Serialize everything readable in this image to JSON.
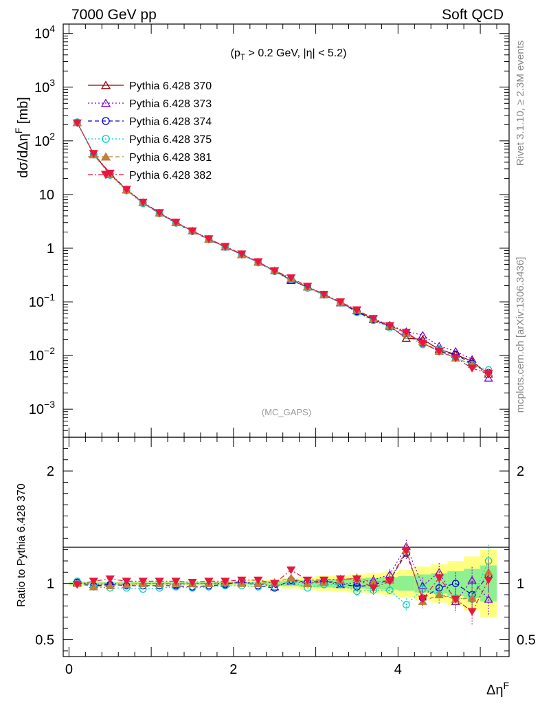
{
  "header": {
    "left": "7000 GeV pp",
    "right": "Soft QCD"
  },
  "side_texts": {
    "top": "Rivet 3.1.10, ≥ 2.3M events",
    "bottom": "mcplots.cern.ch [arXiv:1306.3436]"
  },
  "watermark": "(MC_GAPS)",
  "cut_label": "(p_T > 0.2 GeV, |η| < 5.2)",
  "chart_data": [
    {
      "type": "line",
      "ylabel": "dσ/dΔη^F [mb]",
      "yscale": "log",
      "ylim": [
        0.0003,
        15000
      ],
      "xlim": [
        -0.07,
        5.35
      ],
      "y_ticks": [
        "10^-3",
        "10^-2",
        "10^-1",
        "1",
        "10",
        "10^2",
        "10^3",
        "10^4"
      ],
      "legend_position": "top-left",
      "x": [
        0.1,
        0.3,
        0.5,
        0.7,
        0.9,
        1.1,
        1.3,
        1.5,
        1.7,
        1.9,
        2.1,
        2.3,
        2.5,
        2.7,
        2.9,
        3.1,
        3.3,
        3.5,
        3.7,
        3.9,
        4.1,
        4.3,
        4.5,
        4.7,
        4.9,
        5.1
      ],
      "series": [
        {
          "name": "Pythia 6.428 370",
          "color": "#990000",
          "marker": "triangle-up-open",
          "dash": "solid",
          "values": [
            218,
            57,
            24,
            12.3,
            7.1,
            4.5,
            3.0,
            2.1,
            1.48,
            1.06,
            0.76,
            0.55,
            0.38,
            0.25,
            0.19,
            0.135,
            0.097,
            0.068,
            0.047,
            0.035,
            0.021,
            0.02,
            0.013,
            0.0105,
            0.0078,
            0.0045
          ]
        },
        {
          "name": "Pythia 6.428 373",
          "color": "#7f00cc",
          "marker": "triangle-up-open",
          "dash": "dotted",
          "values": [
            220,
            57,
            24,
            12.2,
            7.1,
            4.5,
            3.0,
            2.1,
            1.48,
            1.06,
            0.76,
            0.55,
            0.38,
            0.26,
            0.19,
            0.135,
            0.096,
            0.069,
            0.048,
            0.037,
            0.028,
            0.024,
            0.015,
            0.012,
            0.0085,
            0.0038
          ]
        },
        {
          "name": "Pythia 6.428 374",
          "color": "#0000cc",
          "marker": "circle-open",
          "dash": "dashed",
          "values": [
            222,
            56,
            24,
            12.1,
            7.0,
            4.4,
            2.95,
            2.05,
            1.45,
            1.05,
            0.77,
            0.54,
            0.37,
            0.26,
            0.19,
            0.137,
            0.096,
            0.066,
            0.046,
            0.036,
            0.026,
            0.017,
            0.012,
            0.0105,
            0.007,
            0.0048
          ]
        },
        {
          "name": "Pythia 6.428 375",
          "color": "#00d1c1",
          "marker": "circle-open",
          "dash": "dotted",
          "values": [
            224,
            55,
            23,
            11.8,
            6.8,
            4.4,
            2.95,
            2.05,
            1.45,
            1.05,
            0.75,
            0.54,
            0.37,
            0.26,
            0.18,
            0.134,
            0.096,
            0.063,
            0.045,
            0.033,
            0.024,
            0.016,
            0.013,
            0.009,
            0.0068,
            0.0054
          ]
        },
        {
          "name": "Pythia 6.428 381",
          "color": "#c17f38",
          "marker": "triangle-up-filled",
          "dash": "dashed",
          "values": [
            219,
            55,
            23.5,
            12.2,
            7.1,
            4.5,
            3.0,
            2.1,
            1.48,
            1.07,
            0.76,
            0.55,
            0.38,
            0.27,
            0.19,
            0.136,
            0.098,
            0.07,
            0.048,
            0.036,
            0.026,
            0.018,
            0.012,
            0.009,
            0.0068,
            0.0048
          ]
        },
        {
          "name": "Pythia 6.428 382",
          "color": "#e8173f",
          "marker": "triangle-down-filled",
          "dash": "dashdot",
          "values": [
            216,
            58,
            25,
            12.5,
            7.2,
            4.6,
            3.05,
            2.1,
            1.5,
            1.08,
            0.78,
            0.56,
            0.38,
            0.28,
            0.195,
            0.138,
            0.1,
            0.071,
            0.049,
            0.036,
            0.027,
            0.017,
            0.012,
            0.009,
            0.0058,
            0.0046
          ]
        }
      ]
    },
    {
      "type": "line",
      "xlabel": "Δη^F",
      "ylabel": "Ratio to Pythia 6.428 370",
      "ylim": [
        0.35,
        2.3
      ],
      "xlim": [
        -0.07,
        5.35
      ],
      "x_ticks": [
        "0",
        "2",
        "4"
      ],
      "y_ticks": [
        "0.5",
        "1",
        "2"
      ],
      "x": [
        0.1,
        0.3,
        0.5,
        0.7,
        0.9,
        1.1,
        1.3,
        1.5,
        1.7,
        1.9,
        2.1,
        2.3,
        2.5,
        2.7,
        2.9,
        3.1,
        3.3,
        3.5,
        3.7,
        3.9,
        4.1,
        4.3,
        4.5,
        4.7,
        4.9,
        5.1
      ],
      "band_green": [
        0.01,
        0.01,
        0.01,
        0.01,
        0.01,
        0.01,
        0.01,
        0.01,
        0.01,
        0.01,
        0.01,
        0.015,
        0.02,
        0.025,
        0.03,
        0.035,
        0.04,
        0.045,
        0.05,
        0.055,
        0.065,
        0.08,
        0.09,
        0.11,
        0.13,
        0.16
      ],
      "band_yellow": [
        0.02,
        0.02,
        0.02,
        0.02,
        0.02,
        0.02,
        0.02,
        0.02,
        0.02,
        0.02,
        0.025,
        0.03,
        0.035,
        0.045,
        0.055,
        0.065,
        0.07,
        0.08,
        0.09,
        0.1,
        0.12,
        0.15,
        0.17,
        0.2,
        0.24,
        0.3
      ],
      "series": [
        {
          "name": "Pythia 6.428 370",
          "color": "#990000",
          "values": [
            1,
            1,
            1,
            1,
            1,
            1,
            1,
            1,
            1,
            1,
            1,
            1,
            1,
            1,
            1,
            1,
            1,
            1,
            1,
            1,
            1,
            1,
            1,
            1,
            1,
            1
          ]
        },
        {
          "name": "Pythia 6.428 373",
          "color": "#7f00cc",
          "values": [
            1.01,
            0.99,
            1.0,
            0.99,
            1.0,
            1.0,
            0.99,
            1.0,
            1.0,
            1.0,
            1.01,
            1.0,
            0.97,
            1.02,
            1.0,
            1.02,
            0.99,
            1.01,
            1.03,
            1.08,
            1.33,
            0.98,
            1.1,
            0.84,
            1.03,
            0.86
          ]
        },
        {
          "name": "Pythia 6.428 374",
          "color": "#0000cc",
          "values": [
            1.01,
            0.98,
            0.99,
            0.98,
            0.98,
            0.98,
            0.98,
            0.97,
            0.98,
            0.99,
            1.02,
            0.98,
            0.96,
            1.03,
            1.01,
            1.02,
            1.0,
            0.97,
            0.99,
            1.03,
            1.27,
            0.87,
            0.96,
            1.0,
            0.9,
            1.07
          ]
        },
        {
          "name": "Pythia 6.428 375",
          "color": "#00d1c1",
          "values": [
            1.02,
            0.97,
            0.96,
            0.96,
            0.95,
            0.96,
            0.97,
            0.96,
            0.97,
            0.98,
            0.98,
            0.97,
            0.97,
            1.02,
            0.96,
            0.99,
            0.99,
            0.93,
            0.94,
            0.94,
            0.81,
            0.95,
            0.9,
            0.87,
            0.86,
            1.2
          ]
        },
        {
          "name": "Pythia 6.428 381",
          "color": "#c17f38",
          "values": [
            1.0,
            0.97,
            0.98,
            0.99,
            1.0,
            1.0,
            1.0,
            1.0,
            1.0,
            1.01,
            1.0,
            1.0,
            1.01,
            1.05,
            1.0,
            1.01,
            1.03,
            1.05,
            1.01,
            1.03,
            1.3,
            0.84,
            0.9,
            0.86,
            0.87,
            1.1
          ]
        },
        {
          "name": "Pythia 6.428 382",
          "color": "#e8173f",
          "values": [
            0.99,
            1.02,
            1.04,
            1.02,
            1.02,
            1.02,
            1.02,
            1.01,
            1.02,
            1.02,
            1.03,
            1.03,
            1.0,
            1.12,
            1.03,
            1.03,
            1.04,
            1.04,
            0.96,
            1.02,
            1.29,
            0.86,
            1.05,
            0.86,
            0.75,
            1.03
          ]
        }
      ]
    }
  ]
}
